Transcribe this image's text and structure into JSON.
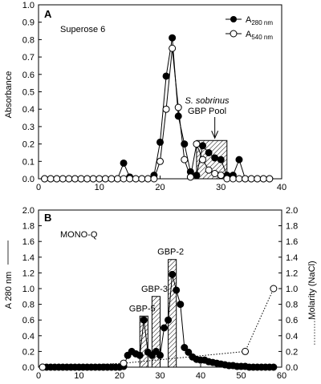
{
  "chart_data": [
    {
      "panel": "A",
      "type": "line",
      "annotation": "Superose 6",
      "ylabel": "Absorbance",
      "xlim": [
        0,
        40
      ],
      "ylim": [
        0,
        1.0
      ],
      "xticks": [
        0,
        10,
        20,
        30,
        40
      ],
      "yticks": [
        0.0,
        0.1,
        0.2,
        0.3,
        0.4,
        0.5,
        0.6,
        0.7,
        0.8,
        0.9,
        1.0
      ],
      "legend_position": "top-right",
      "series": [
        {
          "name": "A280 nm",
          "name_main": "A",
          "name_sub": "280 nm",
          "marker": "filled-circle",
          "points": [
            [
              1,
              0
            ],
            [
              2,
              0
            ],
            [
              3,
              0
            ],
            [
              4,
              0
            ],
            [
              5,
              0
            ],
            [
              6,
              0
            ],
            [
              7,
              0
            ],
            [
              8,
              0
            ],
            [
              9,
              0
            ],
            [
              10,
              0
            ],
            [
              11,
              0
            ],
            [
              12,
              0
            ],
            [
              13,
              0
            ],
            [
              14,
              0.09
            ],
            [
              15,
              0.01
            ],
            [
              16,
              0
            ],
            [
              17,
              0
            ],
            [
              18,
              0
            ],
            [
              19,
              0.02
            ],
            [
              20,
              0.21
            ],
            [
              21,
              0.59
            ],
            [
              22,
              0.81
            ],
            [
              23,
              0.36
            ],
            [
              24,
              0.2
            ],
            [
              25,
              0.04
            ],
            [
              26,
              0.02
            ],
            [
              27,
              0.19
            ],
            [
              28,
              0.15
            ],
            [
              29,
              0.12
            ],
            [
              30,
              0.11
            ],
            [
              31,
              0.02
            ],
            [
              32,
              0.02
            ],
            [
              33,
              0.11
            ],
            [
              34,
              0
            ],
            [
              35,
              0
            ],
            [
              36,
              0
            ],
            [
              37,
              0
            ],
            [
              38,
              0
            ]
          ]
        },
        {
          "name": "A540 nm",
          "name_main": "A",
          "name_sub": "540 nm",
          "marker": "open-circle",
          "points": [
            [
              1,
              0
            ],
            [
              2,
              0
            ],
            [
              3,
              0
            ],
            [
              4,
              0
            ],
            [
              5,
              0
            ],
            [
              6,
              0
            ],
            [
              7,
              0
            ],
            [
              8,
              0
            ],
            [
              9,
              0
            ],
            [
              10,
              0
            ],
            [
              11,
              0
            ],
            [
              12,
              0
            ],
            [
              13,
              0
            ],
            [
              14,
              0
            ],
            [
              15,
              0
            ],
            [
              16,
              0
            ],
            [
              17,
              0
            ],
            [
              18,
              0
            ],
            [
              19,
              0
            ],
            [
              20,
              0.1
            ],
            [
              21,
              0.4
            ],
            [
              22,
              0.75
            ],
            [
              23,
              0.41
            ],
            [
              24,
              0.11
            ],
            [
              25,
              0.01
            ],
            [
              26,
              0.2
            ],
            [
              27,
              0.11
            ],
            [
              28,
              0.05
            ],
            [
              29,
              0.03
            ],
            [
              30,
              0.02
            ],
            [
              31,
              0
            ],
            [
              32,
              0
            ],
            [
              33,
              0
            ],
            [
              34,
              0
            ],
            [
              35,
              0
            ],
            [
              36,
              0
            ],
            [
              37,
              0
            ],
            [
              38,
              0
            ]
          ]
        }
      ],
      "pool": {
        "x_start": 26,
        "x_end": 31,
        "height": 0.22,
        "label_italic": "S. sobrinus",
        "label": "GBP Pool"
      }
    },
    {
      "panel": "B",
      "type": "line",
      "annotation": "MONO-Q",
      "ylabel": "A 280 nm",
      "y2label": "Molarity (NaCl)",
      "xlim": [
        0,
        60
      ],
      "ylim": [
        0,
        2.0
      ],
      "y2lim": [
        0,
        2.0
      ],
      "xticks": [
        0,
        10,
        20,
        30,
        40,
        50,
        60
      ],
      "yticks": [
        0.0,
        0.2,
        0.4,
        0.6,
        0.8,
        1.0,
        1.2,
        1.4,
        1.6,
        1.8,
        2.0
      ],
      "series": [
        {
          "name": "A 280 nm",
          "marker": "filled-circle",
          "points": [
            [
              1,
              0
            ],
            [
              2,
              0
            ],
            [
              3,
              0
            ],
            [
              4,
              0
            ],
            [
              5,
              0
            ],
            [
              6,
              0
            ],
            [
              7,
              0
            ],
            [
              8,
              0
            ],
            [
              9,
              0
            ],
            [
              10,
              0
            ],
            [
              11,
              0
            ],
            [
              12,
              0
            ],
            [
              13,
              0
            ],
            [
              14,
              0
            ],
            [
              15,
              0
            ],
            [
              16,
              0
            ],
            [
              17,
              0
            ],
            [
              18,
              0
            ],
            [
              19,
              0
            ],
            [
              20,
              0
            ],
            [
              21,
              0.01
            ],
            [
              22,
              0.15
            ],
            [
              23,
              0.2
            ],
            [
              24,
              0.17
            ],
            [
              25,
              0.15
            ],
            [
              26,
              0.6
            ],
            [
              27,
              0.19
            ],
            [
              28,
              0.15
            ],
            [
              29,
              0.2
            ],
            [
              30,
              0.15
            ],
            [
              31,
              0.5
            ],
            [
              32,
              0.6
            ],
            [
              33,
              1.18
            ],
            [
              34,
              0.98
            ],
            [
              35,
              0.8
            ],
            [
              36,
              0.25
            ],
            [
              37,
              0.19
            ],
            [
              38,
              0.13
            ],
            [
              39,
              0.1
            ],
            [
              40,
              0.09
            ],
            [
              41,
              0.09
            ],
            [
              42,
              0.07
            ],
            [
              43,
              0.06
            ],
            [
              44,
              0.05
            ],
            [
              45,
              0.04
            ],
            [
              46,
              0.03
            ],
            [
              47,
              0.02
            ],
            [
              48,
              0.02
            ],
            [
              49,
              0.01
            ],
            [
              50,
              0.01
            ],
            [
              51,
              0.01
            ],
            [
              52,
              0
            ],
            [
              53,
              0
            ],
            [
              54,
              0
            ],
            [
              55,
              0
            ],
            [
              56,
              0
            ],
            [
              57,
              0
            ],
            [
              58,
              0
            ]
          ]
        },
        {
          "name": "Molarity (NaCl)",
          "marker": "open-circle",
          "line": "dotted",
          "points": [
            [
              1,
              0
            ],
            [
              21,
              0.05
            ],
            [
              51,
              0.2
            ],
            [
              58,
              1.0
            ]
          ]
        }
      ],
      "bars": [
        {
          "label": "GBP-5",
          "x_start": 25,
          "x_end": 27,
          "height": 0.65
        },
        {
          "label": "GBP-3",
          "x_start": 28,
          "x_end": 30,
          "height": 0.9
        },
        {
          "label": "GBP-2",
          "x_start": 32,
          "x_end": 34,
          "height": 1.37
        }
      ]
    }
  ]
}
